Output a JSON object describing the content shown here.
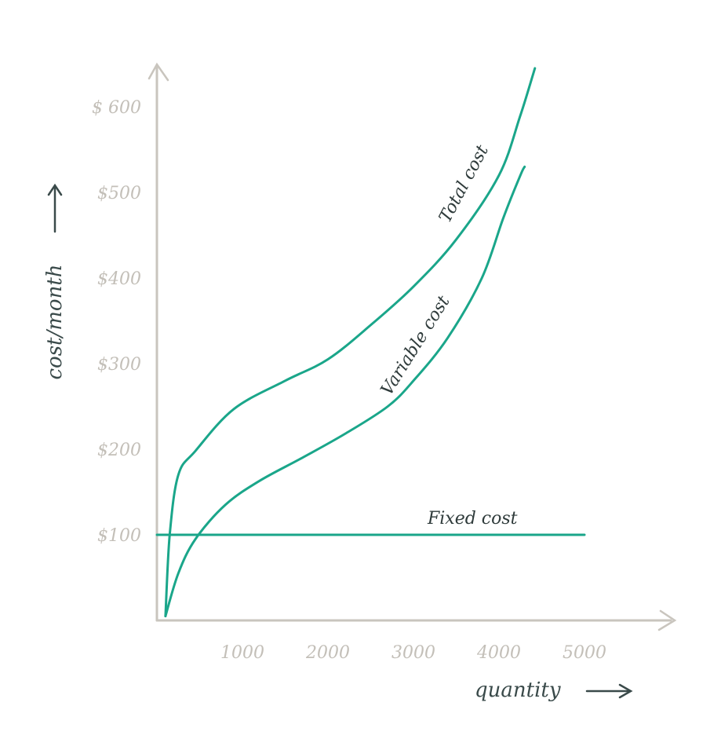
{
  "chart_data": {
    "type": "line",
    "xlabel": "quantity",
    "ylabel": "cost/month",
    "xlim": [
      0,
      6200
    ],
    "ylim": [
      0,
      700
    ],
    "x_ticks": [
      1000,
      2000,
      3000,
      4000,
      5000
    ],
    "x_tick_labels": [
      "1000",
      "2000",
      "3000",
      "4000",
      "5000"
    ],
    "y_ticks": [
      100,
      200,
      300,
      400,
      500,
      600
    ],
    "y_tick_labels": [
      "$100",
      "$200",
      "$300",
      "$400",
      "$500",
      "$ 600"
    ],
    "grid": false,
    "legend": "none",
    "series": [
      {
        "name": "Total cost",
        "color": "#1aa68a",
        "points": [
          [
            100,
            5
          ],
          [
            150,
            100
          ],
          [
            250,
            170
          ],
          [
            450,
            198
          ],
          [
            900,
            247
          ],
          [
            1500,
            280
          ],
          [
            2000,
            305
          ],
          [
            2500,
            345
          ],
          [
            3000,
            390
          ],
          [
            3500,
            445
          ],
          [
            4000,
            520
          ],
          [
            4250,
            590
          ],
          [
            4420,
            645
          ]
        ]
      },
      {
        "name": "Variable cost",
        "color": "#1aa68a",
        "points": [
          [
            100,
            5
          ],
          [
            250,
            55
          ],
          [
            450,
            95
          ],
          [
            800,
            135
          ],
          [
            1200,
            163
          ],
          [
            1700,
            190
          ],
          [
            2200,
            218
          ],
          [
            2700,
            250
          ],
          [
            3000,
            280
          ],
          [
            3400,
            330
          ],
          [
            3800,
            400
          ],
          [
            4050,
            470
          ],
          [
            4250,
            520
          ],
          [
            4300,
            530
          ]
        ]
      },
      {
        "name": "Fixed cost",
        "color": "#1aa68a",
        "points": [
          [
            0,
            100
          ],
          [
            5000,
            100
          ]
        ]
      }
    ]
  }
}
